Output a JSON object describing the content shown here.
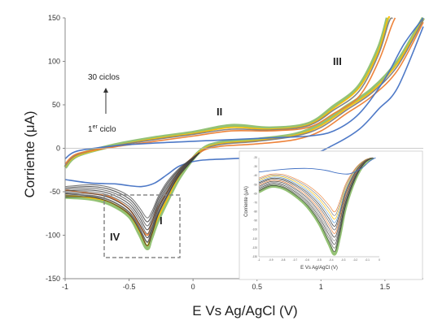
{
  "colors": {
    "cycle1": "#4472C4",
    "cycle_orange": "#ED7D31",
    "cycle_gray": "#7F7F7F",
    "cycle_yellow": "#FFC000",
    "cycle_last": "#70AD47",
    "axis": "#888888",
    "box": "#888888"
  },
  "annotations": {
    "cycles_label": "30 ciclos",
    "first_cycle_label": "1",
    "first_cycle_sup": "er",
    "first_cycle_word": " ciclo",
    "peak_I": "I",
    "peak_II": "II",
    "peak_III": "III",
    "peak_IV": "IV"
  },
  "chart_data": [
    {
      "type": "line",
      "xlabel": "E Vs Ag/AgCl (V)",
      "ylabel": "Corriente (μA)",
      "xlim": [
        -1,
        1.8
      ],
      "ylim": [
        -150,
        150
      ],
      "xticks": [
        "-1",
        "-0.5",
        "0",
        "0.5",
        "1",
        "1.5"
      ],
      "xtick_values": [
        -1,
        -0.5,
        0,
        0.5,
        1,
        1.5
      ],
      "yticks": [
        "-150",
        "-100",
        "-50",
        "0",
        "50",
        "100",
        "150"
      ],
      "ytick_values": [
        -150,
        -100,
        -50,
        0,
        50,
        100,
        150
      ],
      "grid": false,
      "series": [
        {
          "color_key": "cycle1",
          "anodic": [
            [
              -1,
              -12
            ],
            [
              -0.9,
              -3
            ],
            [
              -0.6,
              3
            ],
            [
              -0.3,
              6
            ],
            [
              0,
              8
            ],
            [
              0.3,
              10
            ],
            [
              0.6,
              12
            ],
            [
              0.9,
              14
            ],
            [
              1.1,
              20
            ],
            [
              1.3,
              40
            ],
            [
              1.5,
              80
            ],
            [
              1.65,
              120
            ],
            [
              1.8,
              150
            ]
          ],
          "cathodic": [
            [
              1.8,
              140
            ],
            [
              1.6,
              70
            ],
            [
              1.45,
              45
            ],
            [
              1.3,
              22
            ],
            [
              1.1,
              4
            ],
            [
              0.9,
              -8
            ],
            [
              0.6,
              -10
            ],
            [
              0.3,
              -12
            ],
            [
              0.05,
              -14
            ],
            [
              -0.1,
              -20
            ],
            [
              -0.2,
              -30
            ],
            [
              -0.3,
              -40
            ],
            [
              -0.4,
              -44
            ],
            [
              -0.5,
              -43
            ],
            [
              -0.6,
              -41
            ],
            [
              -0.8,
              -40
            ],
            [
              -1,
              -36
            ]
          ]
        },
        {
          "color_key": "cycle_orange",
          "anodic": [
            [
              -1,
              -18
            ],
            [
              -0.9,
              -6
            ],
            [
              -0.6,
              2
            ],
            [
              -0.3,
              8
            ],
            [
              0,
              14
            ],
            [
              0.3,
              20
            ],
            [
              0.6,
              20
            ],
            [
              0.9,
              24
            ],
            [
              1.1,
              40
            ],
            [
              1.3,
              60
            ],
            [
              1.45,
              100
            ],
            [
              1.55,
              140
            ],
            [
              1.58,
              150
            ]
          ],
          "cathodic": [
            [
              1.8,
              145
            ],
            [
              1.6,
              90
            ],
            [
              1.4,
              60
            ],
            [
              1.2,
              40
            ],
            [
              1.0,
              20
            ],
            [
              0.8,
              10
            ],
            [
              0.5,
              5
            ],
            [
              0.2,
              2
            ],
            [
              0.05,
              -5
            ],
            [
              -0.1,
              -25
            ],
            [
              -0.2,
              -50
            ],
            [
              -0.28,
              -70
            ],
            [
              -0.33,
              -90
            ],
            [
              -0.36,
              -100
            ],
            [
              -0.42,
              -88
            ],
            [
              -0.5,
              -70
            ],
            [
              -0.65,
              -56
            ],
            [
              -0.8,
              -52
            ],
            [
              -1,
              -48
            ]
          ]
        },
        {
          "color_key": "cycle_gray",
          "anodic": [
            [
              -1,
              -20
            ],
            [
              -0.9,
              -7
            ],
            [
              -0.6,
              3
            ],
            [
              -0.3,
              10
            ],
            [
              0,
              16
            ],
            [
              0.3,
              22
            ],
            [
              0.6,
              21
            ],
            [
              0.9,
              26
            ],
            [
              1.1,
              44
            ],
            [
              1.3,
              66
            ],
            [
              1.45,
              108
            ],
            [
              1.53,
              145
            ],
            [
              1.56,
              150
            ]
          ],
          "cathodic": [
            [
              1.8,
              148
            ],
            [
              1.6,
              95
            ],
            [
              1.4,
              64
            ],
            [
              1.2,
              44
            ],
            [
              1.0,
              24
            ],
            [
              0.8,
              14
            ],
            [
              0.5,
              8
            ],
            [
              0.2,
              4
            ],
            [
              0.05,
              -5
            ],
            [
              -0.1,
              -28
            ],
            [
              -0.2,
              -55
            ],
            [
              -0.28,
              -78
            ],
            [
              -0.33,
              -98
            ],
            [
              -0.36,
              -108
            ],
            [
              -0.42,
              -92
            ],
            [
              -0.5,
              -74
            ],
            [
              -0.65,
              -60
            ],
            [
              -0.8,
              -55
            ],
            [
              -1,
              -52
            ]
          ]
        },
        {
          "color_key": "cycle_yellow",
          "anodic": [
            [
              -1,
              -21
            ],
            [
              -0.9,
              -8
            ],
            [
              -0.6,
              3
            ],
            [
              -0.3,
              11
            ],
            [
              0,
              17
            ],
            [
              0.3,
              24
            ],
            [
              0.6,
              22
            ],
            [
              0.9,
              27
            ],
            [
              1.1,
              46
            ],
            [
              1.3,
              70
            ],
            [
              1.45,
              112
            ],
            [
              1.52,
              148
            ],
            [
              1.54,
              150
            ]
          ],
          "cathodic": [
            [
              1.8,
              149
            ],
            [
              1.6,
              98
            ],
            [
              1.4,
              66
            ],
            [
              1.2,
              46
            ],
            [
              1.0,
              26
            ],
            [
              0.8,
              15
            ],
            [
              0.5,
              9
            ],
            [
              0.2,
              5
            ],
            [
              0.05,
              -4
            ],
            [
              -0.1,
              -30
            ],
            [
              -0.2,
              -58
            ],
            [
              -0.28,
              -82
            ],
            [
              -0.33,
              -102
            ],
            [
              -0.36,
              -112
            ],
            [
              -0.42,
              -95
            ],
            [
              -0.5,
              -76
            ],
            [
              -0.65,
              -62
            ],
            [
              -0.8,
              -57
            ],
            [
              -1,
              -54
            ]
          ]
        },
        {
          "color_key": "cycle_last",
          "anodic": [
            [
              -1,
              -22
            ],
            [
              -0.9,
              -8
            ],
            [
              -0.6,
              4
            ],
            [
              -0.3,
              12
            ],
            [
              0,
              18
            ],
            [
              0.3,
              26
            ],
            [
              0.6,
              23
            ],
            [
              0.9,
              28
            ],
            [
              1.1,
              48
            ],
            [
              1.3,
              72
            ],
            [
              1.45,
              115
            ],
            [
              1.52,
              150
            ]
          ],
          "cathodic": [
            [
              1.8,
              150
            ],
            [
              1.6,
              100
            ],
            [
              1.4,
              68
            ],
            [
              1.2,
              48
            ],
            [
              1.0,
              28
            ],
            [
              0.8,
              16
            ],
            [
              0.5,
              10
            ],
            [
              0.2,
              6
            ],
            [
              0.05,
              -4
            ],
            [
              -0.1,
              -32
            ],
            [
              -0.2,
              -60
            ],
            [
              -0.28,
              -85
            ],
            [
              -0.33,
              -105
            ],
            [
              -0.36,
              -115
            ],
            [
              -0.42,
              -98
            ],
            [
              -0.5,
              -78
            ],
            [
              -0.65,
              -64
            ],
            [
              -0.8,
              -58
            ],
            [
              -1,
              -56
            ]
          ]
        }
      ]
    },
    {
      "type": "line",
      "inset": true,
      "ylabel": "Corriente (μA)",
      "xlabel": "E Vs Ag/AgCl (V)",
      "xlim": [
        -1,
        0
      ],
      "ylim": [
        -130,
        -20
      ],
      "xticks": [
        "-1",
        "-0.9",
        "-0.8",
        "-0.7",
        "-0.6",
        "-0.5",
        "-0.4",
        "-0.3",
        "-0.2",
        "-0.1",
        "0"
      ],
      "xtick_values": [
        -1,
        -0.9,
        -0.8,
        -0.7,
        -0.6,
        -0.5,
        -0.4,
        -0.3,
        -0.2,
        -0.1,
        0
      ],
      "yticks": [
        "-20",
        "-30",
        "-40",
        "-50",
        "-60",
        "-70",
        "-80",
        "-90",
        "-100",
        "-110",
        "-120",
        "-130"
      ],
      "ytick_values": [
        -20,
        -30,
        -40,
        -50,
        -60,
        -70,
        -80,
        -90,
        -100,
        -110,
        -120,
        -130
      ],
      "grid": false
    }
  ]
}
